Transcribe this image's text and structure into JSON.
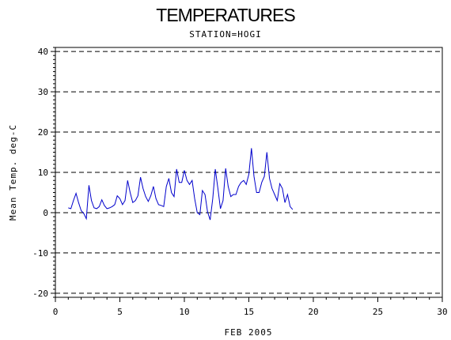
{
  "chart_data": {
    "type": "line",
    "title": "TEMPERATURES",
    "subtitle": "STATION=HOGI",
    "xlabel": "FEB 2005",
    "ylabel": "Mean Temp. deg-C",
    "xlim": [
      0,
      30
    ],
    "ylim": [
      -21,
      41
    ],
    "x_ticks": [
      0,
      5,
      10,
      15,
      20,
      25,
      30
    ],
    "y_ticks": [
      -20,
      -10,
      0,
      10,
      20,
      30,
      40
    ],
    "grid": "horizontal dashed at major y ticks",
    "line_color": "#0000cc",
    "series": [
      {
        "x": [
          1.0,
          1.2,
          1.4,
          1.6,
          1.8,
          2.0,
          2.2,
          2.4,
          2.6,
          2.8,
          3.0,
          3.2,
          3.4,
          3.6,
          3.8,
          4.0,
          4.2,
          4.4,
          4.6,
          4.8,
          5.0,
          5.2,
          5.4,
          5.6,
          5.8,
          6.0,
          6.2,
          6.4,
          6.6,
          6.8,
          7.0,
          7.2,
          7.4,
          7.6,
          7.8,
          8.0,
          8.2,
          8.4,
          8.6,
          8.8,
          9.0,
          9.2,
          9.4,
          9.6,
          9.8,
          10.0,
          10.2,
          10.4,
          10.6,
          10.8,
          11.0,
          11.2,
          11.4,
          11.6,
          11.8,
          12.0,
          12.2,
          12.4,
          12.6,
          12.8,
          13.0,
          13.2,
          13.4,
          13.6,
          13.8,
          14.0,
          14.2,
          14.4,
          14.6,
          14.8,
          15.0,
          15.2,
          15.4,
          15.6,
          15.8,
          16.0,
          16.2,
          16.4,
          16.6,
          16.8,
          17.0,
          17.2,
          17.4,
          17.6,
          17.8,
          18.0,
          18.2,
          18.4
        ],
        "y": [
          1.2,
          1.0,
          3.0,
          4.8,
          2.5,
          0.5,
          -0.2,
          -1.5,
          6.8,
          3.0,
          1.2,
          1.0,
          1.5,
          3.2,
          1.8,
          1.0,
          1.2,
          1.5,
          2.0,
          4.2,
          3.5,
          2.0,
          3.0,
          8.0,
          5.0,
          2.5,
          3.0,
          4.2,
          8.8,
          6.0,
          4.0,
          2.8,
          4.2,
          6.5,
          3.5,
          2.0,
          1.8,
          1.5,
          6.5,
          8.5,
          5.0,
          4.0,
          10.8,
          7.5,
          7.5,
          10.5,
          8.0,
          7.0,
          8.0,
          3.5,
          0.0,
          -0.5,
          5.5,
          4.5,
          0.2,
          -1.8,
          3.5,
          10.8,
          6.0,
          1.0,
          3.0,
          11.0,
          6.5,
          4.0,
          4.5,
          4.5,
          6.5,
          7.5,
          8.0,
          7.0,
          9.5,
          16.0,
          9.0,
          5.0,
          5.0,
          7.5,
          9.0,
          15.0,
          8.5,
          6.0,
          4.5,
          3.0,
          7.2,
          6.0,
          2.5,
          4.5,
          1.5,
          0.8
        ]
      }
    ]
  }
}
